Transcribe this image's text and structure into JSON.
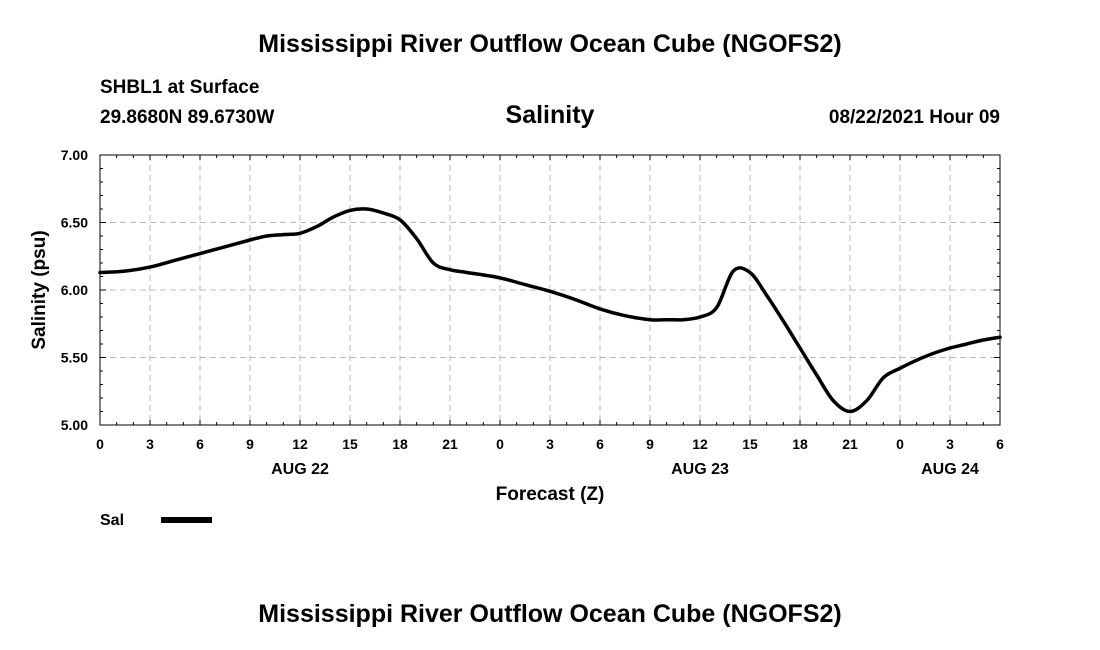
{
  "header": {
    "title": "Mississippi River Outflow Ocean Cube (NGOFS2)",
    "station": "SHBL1 at Surface",
    "coordinates": "29.8680N  89.6730W",
    "timestamp": "08/22/2021 Hour 09"
  },
  "footer": {
    "title": "Mississippi River Outflow Ocean Cube (NGOFS2)"
  },
  "chart_data": {
    "type": "line",
    "title": "Salinity",
    "xlabel": "Forecast (Z)",
    "ylabel": "Salinity (psu)",
    "xlim": [
      0,
      54
    ],
    "ylim": [
      5.0,
      7.0
    ],
    "grid": true,
    "x_tick_labels": [
      "0",
      "3",
      "6",
      "9",
      "12",
      "15",
      "18",
      "21",
      "0",
      "3",
      "6",
      "9",
      "12",
      "15",
      "18",
      "21",
      "0",
      "3",
      "6"
    ],
    "y_tick_labels": [
      "5.00",
      "5.50",
      "6.00",
      "6.50",
      "7.00"
    ],
    "date_labels": [
      {
        "text": "AUG 22",
        "hour": 12
      },
      {
        "text": "AUG 23",
        "hour": 36
      },
      {
        "text": "AUG 24",
        "hour": 51
      }
    ],
    "legend": {
      "placement": "bottom-left"
    },
    "series": [
      {
        "name": "Sal",
        "color": "#000000",
        "x": [
          0,
          1.5,
          3,
          4.5,
          6,
          7.5,
          9,
          10,
          11,
          12,
          13,
          14,
          15,
          16,
          17,
          18,
          19,
          20,
          21,
          22,
          24,
          25.5,
          27,
          28.5,
          30,
          31.5,
          33,
          34,
          35,
          36,
          37,
          38,
          39,
          40,
          41,
          42,
          43,
          44,
          45,
          46,
          47,
          48,
          49,
          50,
          51,
          52,
          53,
          54
        ],
        "values": [
          6.13,
          6.14,
          6.17,
          6.22,
          6.27,
          6.32,
          6.37,
          6.4,
          6.41,
          6.42,
          6.47,
          6.54,
          6.59,
          6.6,
          6.57,
          6.52,
          6.38,
          6.2,
          6.15,
          6.13,
          6.09,
          6.04,
          5.99,
          5.93,
          5.86,
          5.81,
          5.78,
          5.78,
          5.78,
          5.8,
          5.87,
          6.14,
          6.13,
          5.96,
          5.77,
          5.57,
          5.37,
          5.18,
          5.1,
          5.18,
          5.35,
          5.42,
          5.48,
          5.53,
          5.57,
          5.6,
          5.63,
          5.65
        ]
      }
    ]
  }
}
